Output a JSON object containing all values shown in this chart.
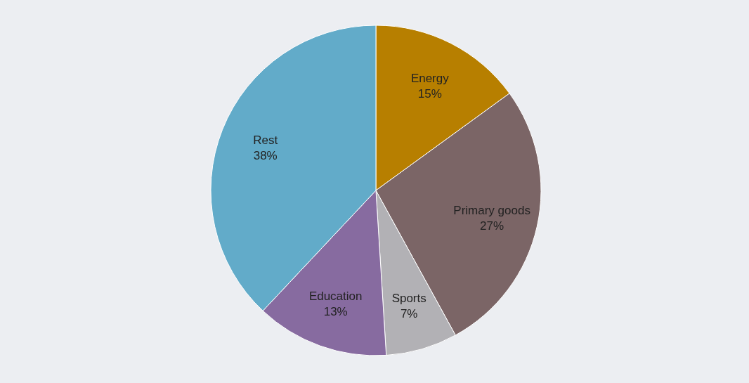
{
  "chart_data": {
    "type": "pie",
    "categories": [
      "Energy",
      "Primary goods",
      "Sports",
      "Education",
      "Rest"
    ],
    "values": [
      15,
      27,
      7,
      13,
      38
    ],
    "value_labels": [
      "15%",
      "27%",
      "7%",
      "13%",
      "38%"
    ],
    "colors": [
      "#b77f00",
      "#7b6566",
      "#b2b1b5",
      "#876ba0",
      "#62abc9"
    ]
  }
}
